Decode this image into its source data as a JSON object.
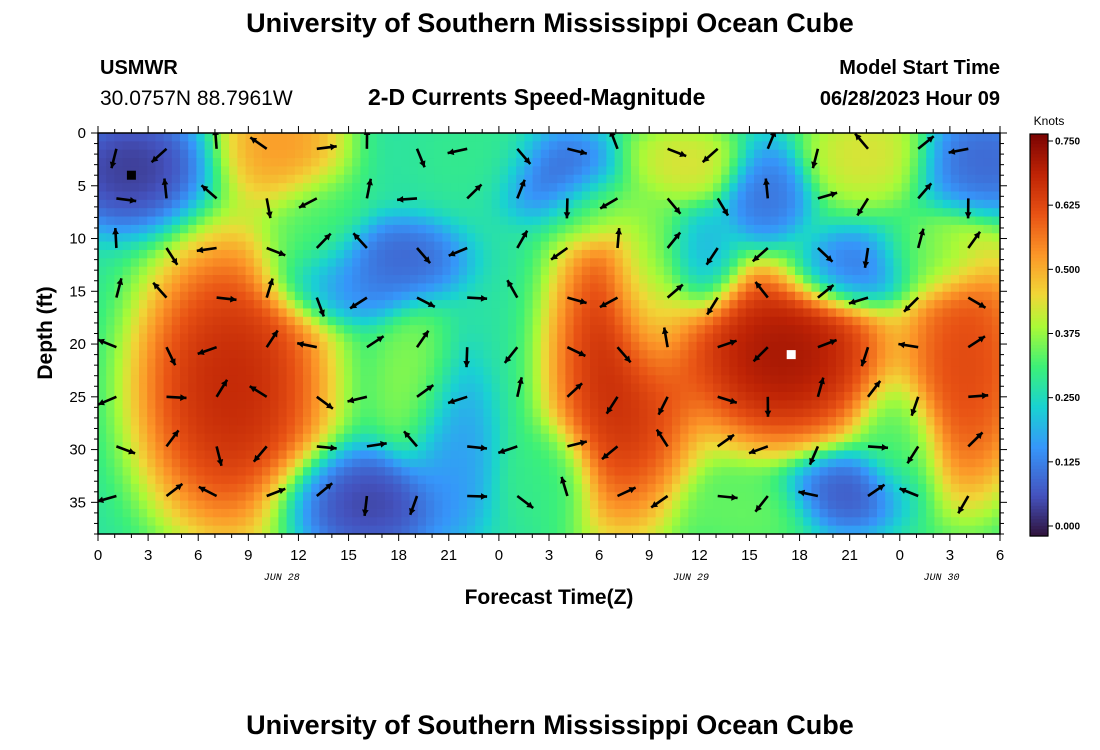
{
  "page": {
    "title": "University of Southern Mississippi Ocean Cube",
    "footer_title": "University of Southern Mississippi Ocean Cube",
    "station": "USMWR",
    "coordinates": "30.0757N  88.7961W",
    "subtitle": "2-D Currents Speed-Magnitude",
    "model_start_label": "Model Start Time",
    "model_start_value": "06/28/2023 Hour 09"
  },
  "chart_data": {
    "type": "heatmap",
    "xlabel": "Forecast Time(Z)",
    "ylabel": "Depth (ft)",
    "x_tick_labels": [
      "0",
      "3",
      "6",
      "9",
      "12",
      "15",
      "18",
      "21",
      "0",
      "3",
      "6",
      "9",
      "12",
      "15",
      "18",
      "21",
      "0",
      "3",
      "6"
    ],
    "x_range_hours": [
      0,
      54
    ],
    "date_labels": [
      {
        "label": "JUN 28",
        "hour": 11
      },
      {
        "label": "JUN 29",
        "hour": 35.5
      },
      {
        "label": "JUN 30",
        "hour": 50.5
      }
    ],
    "y_ticks": [
      0,
      5,
      10,
      15,
      20,
      25,
      30,
      35
    ],
    "y_range": [
      0,
      38
    ],
    "colorbar": {
      "title": "Knots",
      "ticks": [
        "0.750",
        "0.625",
        "0.500",
        "0.375",
        "0.250",
        "0.125",
        "0.000"
      ],
      "range": [
        0,
        0.75
      ]
    },
    "grid": false,
    "vector_overlay": true,
    "speed_features": [
      {
        "hour": 2,
        "depth": 3.5,
        "knots": 0.02,
        "rx": 3.5,
        "ry": 4.5
      },
      {
        "hour": 8,
        "depth": 24,
        "knots": 0.72,
        "rx": 4.5,
        "ry": 11
      },
      {
        "hour": 11,
        "depth": 1,
        "knots": 0.55,
        "rx": 3,
        "ry": 5
      },
      {
        "hour": 13,
        "depth": 10,
        "knots": 0.32,
        "rx": 2.5,
        "ry": 5
      },
      {
        "hour": 15,
        "depth": 14,
        "knots": 0.12,
        "rx": 3.5,
        "ry": 3
      },
      {
        "hour": 16,
        "depth": 35,
        "knots": 0.03,
        "rx": 4,
        "ry": 4
      },
      {
        "hour": 18,
        "depth": 12,
        "knots": 0.08,
        "rx": 3,
        "ry": 3
      },
      {
        "hour": 19,
        "depth": 24,
        "knots": 0.38,
        "rx": 2,
        "ry": 6
      },
      {
        "hour": 21,
        "depth": 30,
        "knots": 0.16,
        "rx": 2,
        "ry": 7
      },
      {
        "hour": 23,
        "depth": 2,
        "knots": 0.3,
        "rx": 3,
        "ry": 3.5
      },
      {
        "hour": 28,
        "depth": 4,
        "knots": 0.08,
        "rx": 3,
        "ry": 3.5
      },
      {
        "hour": 30,
        "depth": 7,
        "knots": 0.35,
        "rx": 2.5,
        "ry": 3
      },
      {
        "hour": 31.5,
        "depth": 22,
        "knots": 0.72,
        "rx": 3.5,
        "ry": 12
      },
      {
        "hour": 33,
        "depth": 14,
        "knots": 0.3,
        "rx": 2,
        "ry": 8
      },
      {
        "hour": 35,
        "depth": 3,
        "knots": 0.45,
        "rx": 3,
        "ry": 3
      },
      {
        "hour": 36,
        "depth": 12,
        "knots": 0.18,
        "rx": 2,
        "ry": 4
      },
      {
        "hour": 41,
        "depth": 21,
        "knots": 0.76,
        "rx": 5,
        "ry": 7
      },
      {
        "hour": 40,
        "depth": 6,
        "knots": 0.1,
        "rx": 2,
        "ry": 4
      },
      {
        "hour": 45,
        "depth": 13,
        "knots": 0.08,
        "rx": 3,
        "ry": 3
      },
      {
        "hour": 45,
        "depth": 34,
        "knots": 0.06,
        "rx": 3,
        "ry": 3
      },
      {
        "hour": 46,
        "depth": 2,
        "knots": 0.45,
        "rx": 3,
        "ry": 4
      },
      {
        "hour": 48,
        "depth": 30,
        "knots": 0.32,
        "rx": 2,
        "ry": 5
      },
      {
        "hour": 52,
        "depth": 22,
        "knots": 0.66,
        "rx": 3,
        "ry": 10
      },
      {
        "hour": 53,
        "depth": 3,
        "knots": 0.08,
        "rx": 3,
        "ry": 4
      },
      {
        "hour": 50,
        "depth": 12,
        "knots": 0.34,
        "rx": 3,
        "ry": 3
      },
      {
        "hour": 27,
        "depth": 33,
        "knots": 0.3,
        "rx": 2,
        "ry": 4
      },
      {
        "hour": 39,
        "depth": 36,
        "knots": 0.35,
        "rx": 3,
        "ry": 3
      }
    ],
    "markers": [
      {
        "hour": 2,
        "depth": 4,
        "color": "#000000"
      },
      {
        "hour": 41.5,
        "depth": 21,
        "color": "#ffffff"
      }
    ]
  }
}
